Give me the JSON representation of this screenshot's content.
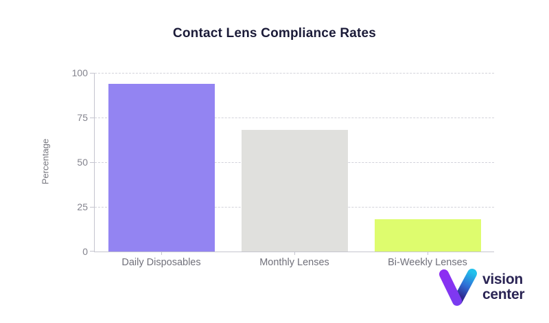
{
  "chart_data": {
    "type": "bar",
    "title": "Contact Lens Compliance Rates",
    "categories": [
      "Daily Disposables",
      "Monthly Lenses",
      "Bi-Weekly Lenses"
    ],
    "values": [
      94,
      68,
      18
    ],
    "bar_colors": [
      "#9384f2",
      "#e0e0dd",
      "#defc6e"
    ],
    "xlabel": "",
    "ylabel": "Percentage",
    "ylim": [
      0,
      100
    ],
    "yticks": [
      0,
      25,
      50,
      75,
      100
    ],
    "grid": "horizontal dashed",
    "legend": "none"
  },
  "colors": {
    "title_text": "#1b1b38",
    "axis_line": "#c4c4ce",
    "gridline": "#d2d2da",
    "y_tick_label": "#83838d",
    "x_tick_label": "#70707a",
    "axis_title": "#76767e",
    "background": "#ffffff"
  },
  "logo": {
    "line1": "vision",
    "line2": "center",
    "text_color": "#2a2454",
    "icon": "v-gradient-icon",
    "icon_colors": {
      "left_arm_top": "#8d2df2",
      "left_arm_bottom": "#7a3cf0",
      "right_arm_top": "#22c1ec",
      "right_arm_mid": "#2f6fd6",
      "right_arm_bottom": "#2e2a92"
    }
  }
}
